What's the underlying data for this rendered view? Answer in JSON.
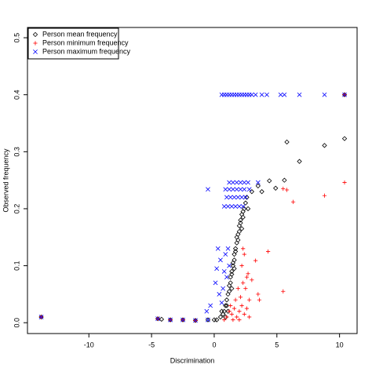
{
  "chart_data": {
    "type": "scatter",
    "xlabel": "Discrimination",
    "ylabel": "Observed frequency",
    "xlim": [
      -14.9,
      11.4
    ],
    "ylim": [
      -0.019,
      0.518
    ],
    "xticks": [
      -10,
      -5,
      0,
      5,
      10
    ],
    "yticks": [
      {
        "value": 0,
        "label": "0.0"
      },
      0.1,
      0.2,
      0.3,
      0.4,
      0.5
    ],
    "legend": "top-left",
    "series": [
      {
        "name": "Person mean frequency",
        "color": "#000000",
        "marker": "diamond",
        "x": [
          -13.8,
          -4.5,
          -4.2,
          -3.5,
          -2.5,
          -1.5,
          -0.5,
          0,
          10.4,
          10.4,
          8.8,
          6.8,
          5.8,
          5.6,
          4.9,
          4.4,
          3.5,
          3.8,
          0.2,
          0.5,
          0.7,
          0.8,
          0.9,
          1.0,
          1.1,
          1.2,
          1.2,
          1.3,
          1.3,
          1.4,
          1.4,
          1.5,
          1.5,
          1.6,
          1.6,
          1.7,
          1.7,
          1.8,
          1.8,
          1.9,
          2.0,
          2.0,
          2.1,
          2.1,
          2.2,
          2.3,
          2.4,
          2.5,
          2.6,
          1.0,
          0.6,
          1.9,
          2.3,
          2.7,
          1.4,
          1.1,
          0.9,
          1.6,
          3.0,
          2.2
        ],
        "values": [
          0.01,
          0.007,
          0.006,
          0.005,
          0.005,
          0.004,
          0.005,
          0.005,
          0.4,
          0.323,
          0.311,
          0.283,
          0.317,
          0.25,
          0.236,
          0.249,
          0.24,
          0.23,
          0.005,
          0.01,
          0.015,
          0.02,
          0.03,
          0.04,
          0.05,
          0.055,
          0.065,
          0.07,
          0.08,
          0.085,
          0.09,
          0.1,
          0.105,
          0.11,
          0.12,
          0.125,
          0.13,
          0.14,
          0.15,
          0.155,
          0.16,
          0.17,
          0.175,
          0.18,
          0.19,
          0.195,
          0.2,
          0.21,
          0.22,
          0.03,
          0.02,
          0.145,
          0.185,
          0.2,
          0.06,
          0.02,
          0.01,
          0.095,
          0.23,
          0.165
        ]
      },
      {
        "name": "Person minimum frequency",
        "color": "#ff0000",
        "marker": "plus",
        "x": [
          10.4,
          10.4,
          8.8,
          5.5,
          5.8,
          6.3,
          4.3,
          3.3,
          2.7,
          3.0,
          3.5,
          5.5,
          3.6,
          2.5,
          2.2,
          2.8,
          2.3,
          2.4,
          -13.8,
          -4.5,
          -3.5,
          -2.5,
          -1.5,
          0.8,
          1.0,
          1.2,
          1.4,
          1.6,
          1.8,
          2.0,
          2.2,
          2.4,
          2.6,
          1.5,
          2.0,
          2.8,
          1.3,
          1.7,
          2.1,
          1.9,
          2.3,
          2.6
        ],
        "values": [
          0.4,
          0.246,
          0.223,
          0.235,
          0.233,
          0.212,
          0.125,
          0.109,
          0.086,
          0.075,
          0.05,
          0.055,
          0.04,
          0.06,
          0.1,
          0.04,
          0.13,
          0.12,
          0.01,
          0.007,
          0.005,
          0.005,
          0.004,
          0.005,
          0.01,
          0.02,
          0.015,
          0.025,
          0.01,
          0.02,
          0.03,
          0.015,
          0.025,
          0.005,
          0.005,
          0.01,
          0.03,
          0.04,
          0.045,
          0.06,
          0.07,
          0.08
        ]
      },
      {
        "name": "Person maximum frequency",
        "color": "#0000ff",
        "marker": "cross",
        "x": [
          0.6,
          0.8,
          1.0,
          1.2,
          1.4,
          1.6,
          1.8,
          2.0,
          2.2,
          2.4,
          2.6,
          2.8,
          3.0,
          3.3,
          3.8,
          4.2,
          5.3,
          5.6,
          6.8,
          8.8,
          10.4,
          1.2,
          1.5,
          1.8,
          2.1,
          2.4,
          2.7,
          3.5,
          -0.5,
          0.9,
          1.2,
          1.5,
          1.8,
          2.1,
          2.4,
          2.8,
          1.0,
          1.3,
          1.6,
          1.9,
          2.2,
          2.5,
          0.8,
          1.1,
          1.4,
          1.7,
          2.0,
          2.3,
          0.3,
          0.2,
          0.1,
          -0.3,
          -0.6,
          0.5,
          0.8,
          1.0,
          0.7,
          0.9,
          1.2,
          0.4,
          0.6,
          1.1,
          -13.8,
          -4.5,
          -3.5,
          -2.5,
          -1.5,
          -0.5
        ],
        "values": [
          0.4,
          0.4,
          0.4,
          0.4,
          0.4,
          0.4,
          0.4,
          0.4,
          0.4,
          0.4,
          0.4,
          0.4,
          0.4,
          0.4,
          0.4,
          0.4,
          0.4,
          0.4,
          0.4,
          0.4,
          0.4,
          0.246,
          0.246,
          0.246,
          0.246,
          0.246,
          0.246,
          0.246,
          0.234,
          0.234,
          0.234,
          0.234,
          0.234,
          0.234,
          0.234,
          0.234,
          0.22,
          0.22,
          0.22,
          0.22,
          0.22,
          0.22,
          0.204,
          0.204,
          0.204,
          0.204,
          0.204,
          0.204,
          0.13,
          0.095,
          0.07,
          0.03,
          0.02,
          0.11,
          0.09,
          0.08,
          0.06,
          0.12,
          0.1,
          0.05,
          0.035,
          0.13,
          0.01,
          0.007,
          0.005,
          0.005,
          0.004,
          0.005
        ]
      }
    ]
  }
}
